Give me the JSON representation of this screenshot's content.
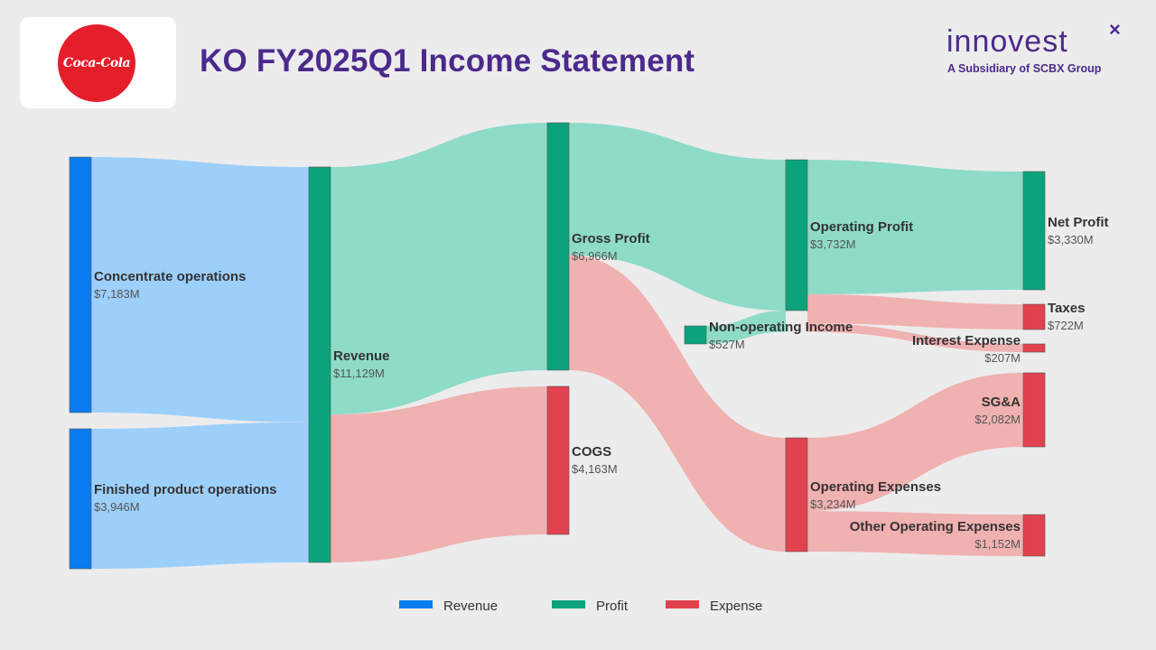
{
  "header": {
    "title": "KO FY2025Q1 Income Statement",
    "logo_text": "Coca-Cola",
    "brand_name": "innovest",
    "brand_subtitle": "A Subsidiary of SCBX Group"
  },
  "colors": {
    "revenue": "#0a7cf0",
    "profit": "#0ca37c",
    "expense": "#e0434e",
    "revenue_flow": "#9dcffb",
    "profit_flow": "#8edbc8",
    "expense_flow": "#f0b1b1",
    "title": "#4b2a8c"
  },
  "legend": [
    {
      "name": "Revenue",
      "color": "#0a7cf0"
    },
    {
      "name": "Profit",
      "color": "#0ca37c"
    },
    {
      "name": "Expense",
      "color": "#e0434e"
    }
  ],
  "chart_data": {
    "type": "sankey",
    "title": "KO FY2025Q1 Income Statement",
    "unit": "$M",
    "nodes": [
      {
        "id": "concentrate",
        "label": "Concentrate operations",
        "value_label": "$7,183M",
        "value": 7183,
        "category": "Revenue"
      },
      {
        "id": "finished",
        "label": "Finished product operations",
        "value_label": "$3,946M",
        "value": 3946,
        "category": "Revenue"
      },
      {
        "id": "revenue",
        "label": "Revenue",
        "value_label": "$11,129M",
        "value": 11129,
        "category": "Profit"
      },
      {
        "id": "gross_profit",
        "label": "Gross Profit",
        "value_label": "$6,966M",
        "value": 6966,
        "category": "Profit"
      },
      {
        "id": "cogs",
        "label": "COGS",
        "value_label": "$4,163M",
        "value": 4163,
        "category": "Expense"
      },
      {
        "id": "nonop_income",
        "label": "Non-operating Income",
        "value_label": "$527M",
        "value": 527,
        "category": "Profit"
      },
      {
        "id": "operating_profit",
        "label": "Operating Profit",
        "value_label": "$3,732M",
        "value": 3732,
        "category": "Profit"
      },
      {
        "id": "operating_expenses",
        "label": "Operating Expenses",
        "value_label": "$3,234M",
        "value": 3234,
        "category": "Expense"
      },
      {
        "id": "net_profit",
        "label": "Net Profit",
        "value_label": "$3,330M",
        "value": 3330,
        "category": "Profit"
      },
      {
        "id": "taxes",
        "label": "Taxes",
        "value_label": "$722M",
        "value": 722,
        "category": "Expense"
      },
      {
        "id": "interest_expense",
        "label": "Interest Expense",
        "value_label": "$207M",
        "value": 207,
        "category": "Expense"
      },
      {
        "id": "sga",
        "label": "SG&A",
        "value_label": "$2,082M",
        "value": 2082,
        "category": "Expense"
      },
      {
        "id": "other_opex",
        "label": "Other Operating Expenses",
        "value_label": "$1,152M",
        "value": 1152,
        "category": "Expense"
      }
    ],
    "links": [
      {
        "source": "concentrate",
        "target": "revenue",
        "value": 7183,
        "category": "Revenue"
      },
      {
        "source": "finished",
        "target": "revenue",
        "value": 3946,
        "category": "Revenue"
      },
      {
        "source": "revenue",
        "target": "gross_profit",
        "value": 6966,
        "category": "Profit"
      },
      {
        "source": "revenue",
        "target": "cogs",
        "value": 4163,
        "category": "Expense"
      },
      {
        "source": "gross_profit",
        "target": "operating_profit",
        "value": 3732,
        "category": "Profit"
      },
      {
        "source": "gross_profit",
        "target": "operating_expenses",
        "value": 3234,
        "category": "Expense"
      },
      {
        "source": "nonop_income",
        "target": "operating_profit",
        "value": 527,
        "category": "Profit"
      },
      {
        "source": "operating_profit",
        "target": "net_profit",
        "value": 3330,
        "category": "Profit"
      },
      {
        "source": "operating_profit",
        "target": "taxes",
        "value": 722,
        "category": "Expense"
      },
      {
        "source": "operating_profit",
        "target": "interest_expense",
        "value": 207,
        "category": "Expense"
      },
      {
        "source": "operating_expenses",
        "target": "sga",
        "value": 2082,
        "category": "Expense"
      },
      {
        "source": "operating_expenses",
        "target": "other_opex",
        "value": 1152,
        "category": "Expense"
      }
    ],
    "legend_position": "bottom-center"
  }
}
